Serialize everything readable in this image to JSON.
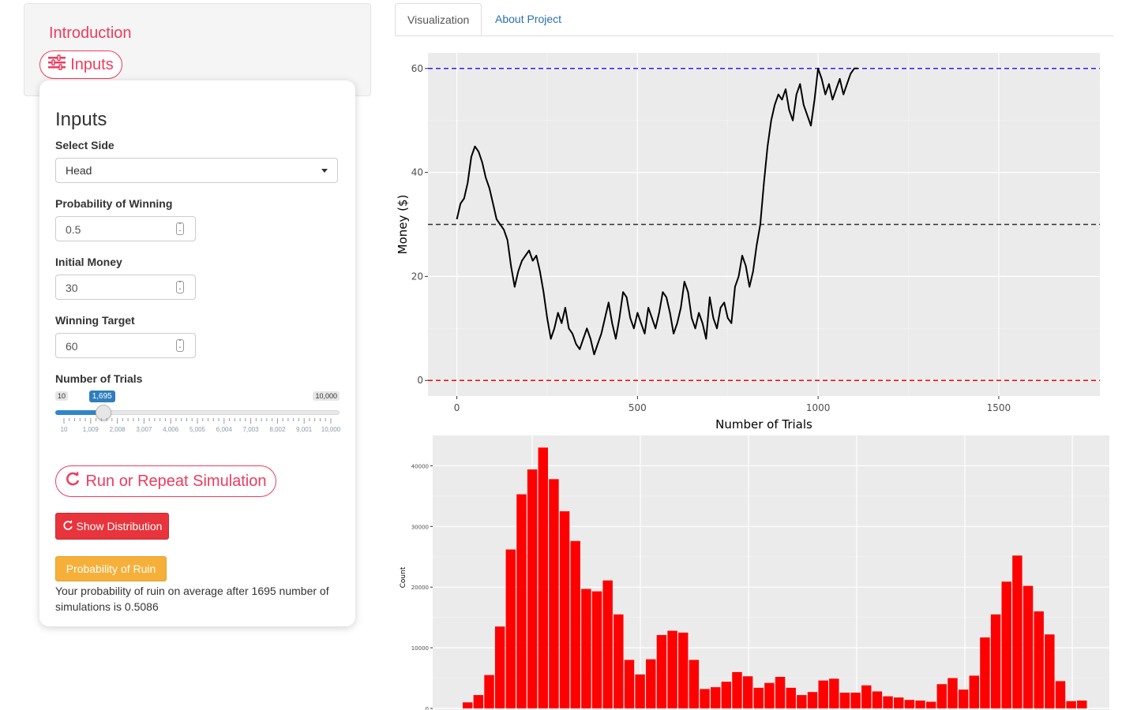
{
  "sidebar": {
    "intro_link": "Introduction",
    "inputs_button": "Inputs"
  },
  "panel": {
    "title": "Inputs",
    "select_side": {
      "label": "Select Side",
      "value": "Head"
    },
    "prob_win": {
      "label": "Probability of Winning",
      "value": "0.5"
    },
    "initial_money": {
      "label": "Initial Money",
      "value": "30"
    },
    "winning_target": {
      "label": "Winning Target",
      "value": "60"
    },
    "trials": {
      "label": "Number of Trials",
      "min_label": "10",
      "max_label": "10,000",
      "current_label": "1,695",
      "min": 10,
      "max": 10000,
      "value": 1695,
      "tick_labels": [
        "10",
        "1,009",
        "2,008",
        "3,007",
        "4,006",
        "5,005",
        "6,004",
        "7,003",
        "8,002",
        "9,001",
        "10,000"
      ]
    },
    "run_button": "Run or Repeat Simulation",
    "dist_button": "Show Distribution",
    "ruin_button": "Probability of Ruin",
    "ruin_text": "Your probability of ruin on average after 1695 number of simulations is 0.5086"
  },
  "tabs": [
    {
      "label": "Visualization",
      "active": true
    },
    {
      "label": "About Project",
      "active": false
    }
  ],
  "colors": {
    "accent": "#f03a5f",
    "target_line": "#3d14ff",
    "ruin_line": "#ff0000",
    "bar_fill": "#ff0000",
    "panel_bg": "#ebebeb"
  },
  "chart_data": [
    {
      "type": "line",
      "xlabel": "Number of Trials",
      "ylabel": "Money ($)",
      "xlim": [
        -80,
        1780
      ],
      "ylim": [
        -3,
        63
      ],
      "x_ticks": [
        0,
        500,
        1000,
        1500
      ],
      "y_ticks": [
        0,
        20,
        40,
        60
      ],
      "hlines": [
        {
          "y": 60,
          "color": "#3d14ff",
          "style": "dashed"
        },
        {
          "y": 30,
          "color": "#333333",
          "style": "dashed"
        },
        {
          "y": 0,
          "color": "#ff0000",
          "style": "dashed"
        }
      ],
      "series": [
        {
          "x": [
            0,
            10,
            20,
            30,
            40,
            50,
            60,
            70,
            80,
            90,
            100,
            110,
            120,
            130,
            140,
            150,
            160,
            170,
            180,
            190,
            200,
            210,
            220,
            230,
            240,
            250,
            260,
            270,
            280,
            290,
            300,
            310,
            320,
            330,
            340,
            350,
            360,
            370,
            380,
            390,
            400,
            410,
            420,
            430,
            440,
            450,
            460,
            470,
            480,
            490,
            500,
            510,
            520,
            530,
            540,
            550,
            560,
            570,
            580,
            590,
            600,
            610,
            620,
            630,
            640,
            650,
            660,
            670,
            680,
            690,
            700,
            710,
            720,
            730,
            740,
            750,
            760,
            770,
            780,
            790,
            800,
            810,
            820,
            830,
            840,
            850,
            860,
            870,
            880,
            890,
            900,
            910,
            920,
            930,
            940,
            950,
            960,
            970,
            980,
            990,
            1000,
            1010,
            1020,
            1030,
            1040,
            1050,
            1060,
            1070,
            1080,
            1090,
            1100,
            1110
          ],
          "y": [
            31,
            34,
            35,
            38,
            43,
            45,
            44,
            42,
            39,
            37,
            34,
            31,
            30,
            29,
            27,
            22,
            18,
            21,
            23,
            24,
            25,
            23,
            24,
            21,
            17,
            12,
            8,
            10,
            13,
            11,
            14,
            10,
            9,
            7,
            6,
            8,
            10,
            8,
            5,
            7,
            9,
            12,
            15,
            11,
            8,
            12,
            17,
            16,
            12,
            10,
            13,
            11,
            9,
            14,
            12,
            10,
            13,
            17,
            16,
            13,
            9,
            11,
            14,
            19,
            17,
            12,
            10,
            13,
            11,
            8,
            16,
            12,
            10,
            14,
            15,
            12,
            11,
            18,
            20,
            24,
            22,
            18,
            21,
            26,
            30,
            38,
            45,
            50,
            53,
            55,
            54,
            56,
            52,
            50,
            55,
            57,
            53,
            51,
            49,
            54,
            60,
            58,
            55,
            57,
            54,
            56,
            58,
            55,
            57,
            59,
            60,
            60
          ]
        }
      ]
    },
    {
      "type": "bar",
      "ylabel": "Count",
      "ylim": [
        0,
        45000
      ],
      "y_ticks": [
        0,
        10000,
        20000,
        30000,
        40000
      ],
      "values": [
        1000,
        2200,
        5500,
        13500,
        26200,
        35300,
        39400,
        43000,
        37800,
        32500,
        27600,
        19700,
        19300,
        21100,
        15500,
        8000,
        5600,
        8100,
        12100,
        12800,
        12500,
        8000,
        3200,
        3500,
        4400,
        6000,
        5300,
        3400,
        4200,
        5200,
        3400,
        2200,
        2700,
        4600,
        4900,
        2600,
        2600,
        3800,
        2800,
        2000,
        1800,
        1400,
        1300,
        1100,
        4000,
        5000,
        3100,
        5400,
        11700,
        15500,
        20900,
        25200,
        20200,
        16000,
        12200,
        4500,
        1200,
        1300
      ]
    }
  ]
}
